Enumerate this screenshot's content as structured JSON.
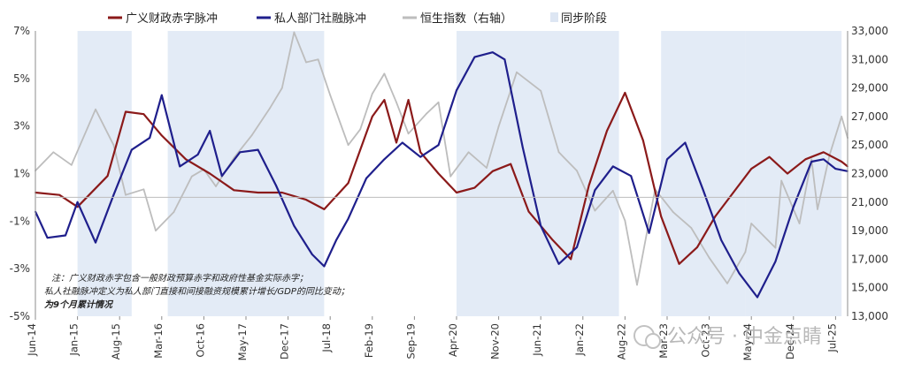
{
  "chart_data": {
    "type": "line",
    "title": "",
    "xlabel": "",
    "ylabel": "",
    "ylim": [
      -5,
      7
    ],
    "ylim_right": [
      13000,
      33000
    ],
    "y_ticks": [
      "7%",
      "5%",
      "3%",
      "1%",
      "-1%",
      "-3%",
      "-5%"
    ],
    "y_ticks_right": [
      "33,000",
      "31,000",
      "29,000",
      "27,000",
      "25,000",
      "23,000",
      "21,000",
      "19,000",
      "17,000",
      "15,000",
      "13,000"
    ],
    "x_ticks": [
      "Jun-14",
      "Jan-15",
      "Aug-15",
      "Mar-16",
      "Oct-16",
      "May-17",
      "Dec-17",
      "Jul-18",
      "Feb-19",
      "Sep-19",
      "Apr-20",
      "Nov-20",
      "Jun-21",
      "Jan-22",
      "Aug-22",
      "Mar-23",
      "Oct-23",
      "May-24",
      "Dec-24",
      "Jul-25"
    ],
    "x_range": [
      "Jun-14",
      "Sep-25"
    ],
    "colors": {
      "fiscal": "#8b1a1a",
      "private": "#1f1f8c",
      "hsi": "#bdbdbd",
      "sync": "#e3ebf6"
    },
    "legend": {
      "fiscal": "广义财政赤字脉冲",
      "private": "私人部门社融脉冲",
      "hsi": "恒生指数（右轴）",
      "sync": "同步阶段"
    },
    "sync_periods": [
      [
        "Jan-15",
        "Oct-15"
      ],
      [
        "Apr-16",
        "Jun-18"
      ],
      [
        "Apr-20",
        "Jul-22"
      ],
      [
        "Feb-23",
        "Apr-24"
      ],
      [
        "Apr-24",
        "Aug-25"
      ]
    ],
    "series": [
      {
        "name": "广义财政赤字脉冲",
        "axis": "left",
        "points": [
          [
            "Jun-14",
            0.2
          ],
          [
            "Oct-14",
            0.1
          ],
          [
            "Jan-15",
            -0.4
          ],
          [
            "Jun-15",
            0.9
          ],
          [
            "Sep-15",
            3.6
          ],
          [
            "Dec-15",
            3.5
          ],
          [
            "Mar-16",
            2.6
          ],
          [
            "Jul-16",
            1.6
          ],
          [
            "Nov-16",
            1.0
          ],
          [
            "Mar-17",
            0.3
          ],
          [
            "Jul-17",
            0.2
          ],
          [
            "Nov-17",
            0.2
          ],
          [
            "Mar-18",
            -0.1
          ],
          [
            "Jun-18",
            -0.5
          ],
          [
            "Oct-18",
            0.6
          ],
          [
            "Feb-19",
            3.4
          ],
          [
            "Apr-19",
            4.1
          ],
          [
            "Jun-19",
            2.3
          ],
          [
            "Aug-19",
            4.1
          ],
          [
            "Oct-19",
            1.9
          ],
          [
            "Jan-20",
            1.0
          ],
          [
            "Apr-20",
            0.2
          ],
          [
            "Jul-20",
            0.4
          ],
          [
            "Oct-20",
            1.1
          ],
          [
            "Jan-21",
            1.4
          ],
          [
            "Apr-21",
            -0.6
          ],
          [
            "Aug-21",
            -1.8
          ],
          [
            "Nov-21",
            -2.6
          ],
          [
            "Feb-22",
            0.5
          ],
          [
            "May-22",
            2.8
          ],
          [
            "Aug-22",
            4.4
          ],
          [
            "Nov-22",
            2.4
          ],
          [
            "Feb-23",
            -0.8
          ],
          [
            "May-23",
            -2.8
          ],
          [
            "Aug-23",
            -2.1
          ],
          [
            "Nov-23",
            -0.8
          ],
          [
            "Feb-24",
            0.2
          ],
          [
            "May-24",
            1.2
          ],
          [
            "Aug-24",
            1.7
          ],
          [
            "Nov-24",
            1.0
          ],
          [
            "Feb-25",
            1.6
          ],
          [
            "May-25",
            1.9
          ],
          [
            "Aug-25",
            1.5
          ],
          [
            "Sep-25",
            1.3
          ]
        ]
      },
      {
        "name": "私人部门社融脉冲",
        "axis": "left",
        "points": [
          [
            "Jun-14",
            -0.6
          ],
          [
            "Aug-14",
            -1.7
          ],
          [
            "Nov-14",
            -1.6
          ],
          [
            "Jan-15",
            -0.2
          ],
          [
            "Apr-15",
            -1.9
          ],
          [
            "Jul-15",
            0.1
          ],
          [
            "Oct-15",
            2.0
          ],
          [
            "Jan-16",
            2.5
          ],
          [
            "Mar-16",
            4.3
          ],
          [
            "Jun-16",
            1.3
          ],
          [
            "Sep-16",
            1.8
          ],
          [
            "Nov-16",
            2.8
          ],
          [
            "Jan-17",
            0.9
          ],
          [
            "Apr-17",
            1.9
          ],
          [
            "Jul-17",
            2.0
          ],
          [
            "Oct-17",
            0.5
          ],
          [
            "Jan-18",
            -1.2
          ],
          [
            "Apr-18",
            -2.4
          ],
          [
            "Jun-18",
            -2.9
          ],
          [
            "Aug-18",
            -1.8
          ],
          [
            "Oct-18",
            -0.9
          ],
          [
            "Jan-19",
            0.8
          ],
          [
            "Apr-19",
            1.6
          ],
          [
            "Jul-19",
            2.3
          ],
          [
            "Oct-19",
            1.7
          ],
          [
            "Jan-20",
            2.2
          ],
          [
            "Apr-20",
            4.5
          ],
          [
            "Jul-20",
            5.9
          ],
          [
            "Oct-20",
            6.1
          ],
          [
            "Dec-20",
            5.8
          ],
          [
            "Mar-21",
            2.1
          ],
          [
            "Jun-21",
            -1.2
          ],
          [
            "Sep-21",
            -2.8
          ],
          [
            "Dec-21",
            -2.1
          ],
          [
            "Mar-22",
            0.3
          ],
          [
            "Jun-22",
            1.3
          ],
          [
            "Sep-22",
            0.9
          ],
          [
            "Dec-22",
            -1.5
          ],
          [
            "Mar-23",
            1.6
          ],
          [
            "Jun-23",
            2.3
          ],
          [
            "Sep-23",
            0.3
          ],
          [
            "Dec-23",
            -1.8
          ],
          [
            "Mar-24",
            -3.2
          ],
          [
            "Jun-24",
            -4.2
          ],
          [
            "Sep-24",
            -2.7
          ],
          [
            "Dec-24",
            -0.4
          ],
          [
            "Mar-25",
            1.5
          ],
          [
            "May-25",
            1.6
          ],
          [
            "Jul-25",
            1.2
          ],
          [
            "Sep-25",
            1.1
          ]
        ]
      },
      {
        "name": "恒生指数（右轴）",
        "axis": "right",
        "points": [
          [
            "Jun-14",
            23200
          ],
          [
            "Sep-14",
            24500
          ],
          [
            "Dec-14",
            23600
          ],
          [
            "Apr-15",
            27500
          ],
          [
            "Jul-15",
            25000
          ],
          [
            "Sep-15",
            21500
          ],
          [
            "Dec-15",
            21900
          ],
          [
            "Feb-16",
            19000
          ],
          [
            "May-16",
            20300
          ],
          [
            "Aug-16",
            22800
          ],
          [
            "Oct-16",
            23300
          ],
          [
            "Dec-16",
            22100
          ],
          [
            "Mar-17",
            24100
          ],
          [
            "Jun-17",
            25700
          ],
          [
            "Sep-17",
            27600
          ],
          [
            "Nov-17",
            29000
          ],
          [
            "Jan-18",
            32900
          ],
          [
            "Mar-18",
            30800
          ],
          [
            "May-18",
            31000
          ],
          [
            "Jul-18",
            28500
          ],
          [
            "Oct-18",
            25000
          ],
          [
            "Dec-18",
            26100
          ],
          [
            "Feb-19",
            28600
          ],
          [
            "Apr-19",
            30000
          ],
          [
            "Jun-19",
            28000
          ],
          [
            "Aug-19",
            25800
          ],
          [
            "Nov-19",
            27200
          ],
          [
            "Jan-20",
            28000
          ],
          [
            "Mar-20",
            22800
          ],
          [
            "Jun-20",
            24500
          ],
          [
            "Sep-20",
            23400
          ],
          [
            "Nov-20",
            26300
          ],
          [
            "Feb-21",
            30100
          ],
          [
            "Jun-21",
            28800
          ],
          [
            "Sep-21",
            24500
          ],
          [
            "Dec-21",
            23200
          ],
          [
            "Mar-22",
            20400
          ],
          [
            "Jun-22",
            21800
          ],
          [
            "Aug-22",
            19700
          ],
          [
            "Oct-22",
            15200
          ],
          [
            "Jan-23",
            21900
          ],
          [
            "Apr-23",
            20300
          ],
          [
            "Jul-23",
            19200
          ],
          [
            "Oct-23",
            17100
          ],
          [
            "Jan-24",
            15300
          ],
          [
            "Apr-24",
            17500
          ],
          [
            "May-24",
            19500
          ],
          [
            "Sep-24",
            17800
          ],
          [
            "Oct-24",
            22500
          ],
          [
            "Jan-25",
            19500
          ],
          [
            "Mar-25",
            24000
          ],
          [
            "Apr-25",
            20500
          ],
          [
            "Jun-25",
            24300
          ],
          [
            "Aug-25",
            27000
          ],
          [
            "Sep-25",
            25500
          ]
        ]
      }
    ],
    "notes": [
      "注：广义财政赤字包含一般财政预算赤字和政府性基金实际赤字；",
      "私人社融脉冲定义为私人部门直接和间接融资规模累计增长/GDP的同比变动；",
      "为9个月累计情况"
    ]
  },
  "watermark": "公众号 · 中金点睛"
}
